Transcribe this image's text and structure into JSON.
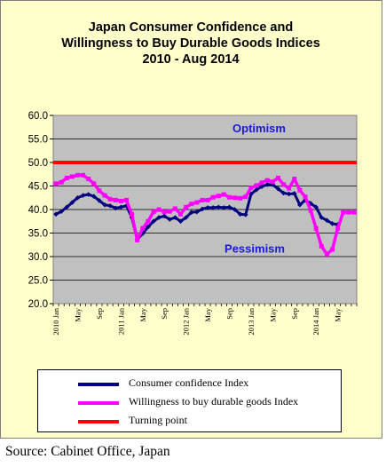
{
  "chart_data": {
    "type": "line",
    "title_lines": [
      "Japan Consumer Confidence and",
      "Willingness to Buy Durable Goods Indices",
      "2010 - Aug  2014"
    ],
    "xlabel": "",
    "ylabel": "",
    "ylim": [
      20.0,
      60.0
    ],
    "y_ticks": [
      "20.0",
      "25.0",
      "30.0",
      "35.0",
      "40.0",
      "45.0",
      "50.0",
      "55.0",
      "60.0"
    ],
    "x_tick_labels": [
      "2010 Jan",
      "May",
      "Sep",
      "2011 Jan",
      "May",
      "Sep",
      "2012 Jan",
      "May",
      "Sep",
      "2013 Jan",
      "May",
      "Sep",
      "2014 Jan",
      "May"
    ],
    "x_months": [
      "2010-01",
      "2010-02",
      "2010-03",
      "2010-04",
      "2010-05",
      "2010-06",
      "2010-07",
      "2010-08",
      "2010-09",
      "2010-10",
      "2010-11",
      "2010-12",
      "2011-01",
      "2011-02",
      "2011-03",
      "2011-04",
      "2011-05",
      "2011-06",
      "2011-07",
      "2011-08",
      "2011-09",
      "2011-10",
      "2011-11",
      "2011-12",
      "2012-01",
      "2012-02",
      "2012-03",
      "2012-04",
      "2012-05",
      "2012-06",
      "2012-07",
      "2012-08",
      "2012-09",
      "2012-10",
      "2012-11",
      "2012-12",
      "2013-01",
      "2013-02",
      "2013-03",
      "2013-04",
      "2013-05",
      "2013-06",
      "2013-07",
      "2013-08",
      "2013-09",
      "2013-10",
      "2013-11",
      "2013-12",
      "2014-01",
      "2014-02",
      "2014-03",
      "2014-04",
      "2014-05",
      "2014-06",
      "2014-07",
      "2014-08"
    ],
    "series": [
      {
        "name": "Consumer confidence Index",
        "color": "#000080",
        "values": [
          39.0,
          39.6,
          40.5,
          41.5,
          42.5,
          43.0,
          43.2,
          42.8,
          41.9,
          41.0,
          40.8,
          40.3,
          40.5,
          40.8,
          38.3,
          33.6,
          34.9,
          36.3,
          37.5,
          38.3,
          38.6,
          37.9,
          38.3,
          37.5,
          38.3,
          39.4,
          39.5,
          40.1,
          40.4,
          40.4,
          40.5,
          40.4,
          40.5,
          40.0,
          39.0,
          38.9,
          43.3,
          44.2,
          44.9,
          45.3,
          45.3,
          44.4,
          43.5,
          43.3,
          43.4,
          41.0,
          42.0,
          41.3,
          40.5,
          38.3,
          37.7,
          37.0,
          36.8,
          null,
          null,
          null
        ]
      },
      {
        "name": "Willingness to buy durable goods Index",
        "color": "#ff00ff",
        "values": [
          45.5,
          45.8,
          46.7,
          47.0,
          47.3,
          47.3,
          46.5,
          45.5,
          44.0,
          43.0,
          42.2,
          42.0,
          41.8,
          42.0,
          39.0,
          33.5,
          36.0,
          37.5,
          39.5,
          40.0,
          39.5,
          39.6,
          40.2,
          39.0,
          40.5,
          41.2,
          41.5,
          42.0,
          42.0,
          42.6,
          42.9,
          43.2,
          42.6,
          42.5,
          42.4,
          42.7,
          44.6,
          45.1,
          45.7,
          46.2,
          45.9,
          46.7,
          45.3,
          44.5,
          46.5,
          44.1,
          42.7,
          39.8,
          36.0,
          32.2,
          30.5,
          31.5,
          36.0,
          39.4,
          39.4,
          39.4
        ]
      },
      {
        "name": "Turning point",
        "color": "#ff0000",
        "constant": 50.0
      }
    ],
    "annotations": {
      "optimism": "Optimism",
      "pessimism": "Pessimism"
    },
    "grid": true,
    "legend_position": "bottom"
  },
  "legend": {
    "items": [
      {
        "label": "Consumer confidence Index",
        "color": "#000080"
      },
      {
        "label": "Willingness to buy durable goods Index",
        "color": "#ff00ff"
      },
      {
        "label": "Turning point",
        "color": "#ff0000"
      }
    ]
  },
  "source": "Source: Cabinet Office, Japan"
}
